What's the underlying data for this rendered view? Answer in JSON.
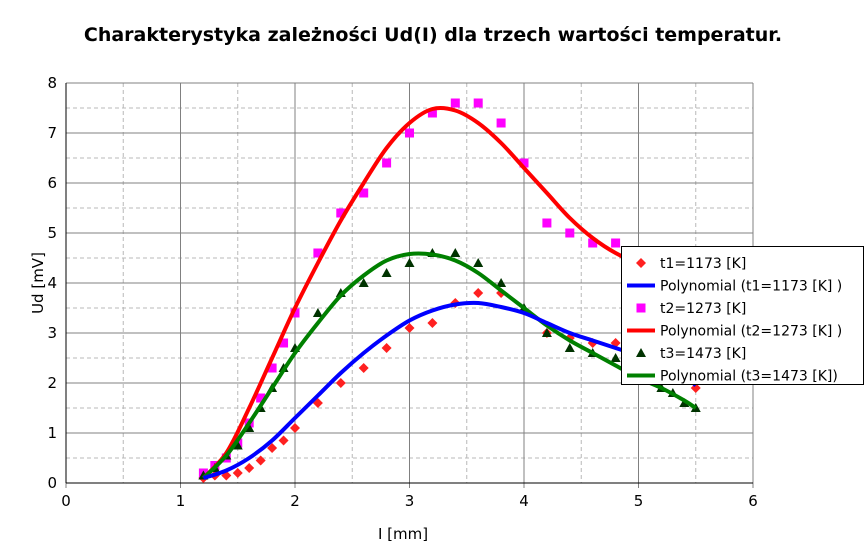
{
  "chart_data": {
    "type": "scatter",
    "title": "Charakterystyka zależności Ud(I) dla trzech wartości temperatur.",
    "xlabel": "I [mm]",
    "ylabel": "Ud [mV]",
    "xlim": [
      0,
      6
    ],
    "ylim": [
      0,
      8
    ],
    "xticks": [
      "0",
      "1",
      "2",
      "3",
      "4",
      "5",
      "6"
    ],
    "yticks": [
      "0",
      "1",
      "2",
      "3",
      "4",
      "5",
      "6",
      "7",
      "8"
    ],
    "grid": true,
    "legend_position": "right",
    "series": [
      {
        "name": "t1=1173 [K]",
        "kind": "points",
        "marker": "diamond",
        "color": "#ff2020",
        "x": [
          1.2,
          1.3,
          1.4,
          1.5,
          1.6,
          1.7,
          1.8,
          1.9,
          2.0,
          2.2,
          2.4,
          2.6,
          2.8,
          3.0,
          3.2,
          3.4,
          3.6,
          3.8,
          4.0,
          4.2,
          4.4,
          4.6,
          4.8,
          5.5
        ],
        "y": [
          0.1,
          0.15,
          0.15,
          0.2,
          0.3,
          0.45,
          0.7,
          0.85,
          1.1,
          1.6,
          2.0,
          2.3,
          2.7,
          3.1,
          3.2,
          3.6,
          3.8,
          3.8,
          3.45,
          3.0,
          2.9,
          2.8,
          2.8,
          1.9
        ]
      },
      {
        "name": "Polynomial (t1=1173 [K] )",
        "kind": "line",
        "color": "#0000ff",
        "x": [
          1.2,
          1.4,
          1.6,
          1.8,
          2.0,
          2.2,
          2.4,
          2.6,
          2.8,
          3.0,
          3.2,
          3.4,
          3.6,
          3.8,
          4.0,
          4.2,
          4.4,
          4.6,
          4.8,
          5.0,
          5.2,
          5.4,
          5.5
        ],
        "y": [
          0.1,
          0.25,
          0.5,
          0.85,
          1.3,
          1.75,
          2.2,
          2.6,
          2.95,
          3.25,
          3.45,
          3.57,
          3.6,
          3.52,
          3.4,
          3.2,
          3.0,
          2.85,
          2.7,
          2.55,
          2.4,
          2.15,
          1.95
        ]
      },
      {
        "name": "t2=1273 [K]",
        "kind": "points",
        "marker": "square",
        "color": "#ff00ff",
        "x": [
          1.2,
          1.3,
          1.4,
          1.5,
          1.6,
          1.7,
          1.8,
          1.9,
          2.0,
          2.2,
          2.4,
          2.6,
          2.8,
          3.0,
          3.2,
          3.4,
          3.6,
          3.8,
          4.0,
          4.2,
          4.4,
          4.6,
          4.8
        ],
        "y": [
          0.2,
          0.35,
          0.5,
          0.8,
          1.2,
          1.7,
          2.3,
          2.8,
          3.4,
          4.6,
          5.4,
          5.8,
          6.4,
          7.0,
          7.4,
          7.6,
          7.6,
          7.2,
          6.4,
          5.2,
          5.0,
          4.8,
          4.8
        ]
      },
      {
        "name": "Polynomial (t2=1273 [K] )",
        "kind": "line",
        "color": "#ff0000",
        "x": [
          1.2,
          1.4,
          1.6,
          1.8,
          2.0,
          2.2,
          2.4,
          2.6,
          2.8,
          3.0,
          3.2,
          3.4,
          3.6,
          3.8,
          4.0,
          4.2,
          4.4,
          4.6,
          4.8,
          5.0,
          5.5
        ],
        "y": [
          0.1,
          0.6,
          1.5,
          2.5,
          3.5,
          4.4,
          5.25,
          6.0,
          6.7,
          7.2,
          7.48,
          7.45,
          7.2,
          6.8,
          6.3,
          5.8,
          5.3,
          4.9,
          4.6,
          4.4,
          4.0
        ]
      },
      {
        "name": "t3=1473 [K]",
        "kind": "points",
        "marker": "triangle",
        "color": "#003300",
        "x": [
          1.2,
          1.3,
          1.4,
          1.5,
          1.6,
          1.7,
          1.8,
          1.9,
          2.0,
          2.2,
          2.4,
          2.6,
          2.8,
          3.0,
          3.2,
          3.4,
          3.6,
          3.8,
          4.0,
          4.2,
          4.4,
          4.6,
          4.8,
          5.2,
          5.3,
          5.4,
          5.5
        ],
        "y": [
          0.15,
          0.3,
          0.55,
          0.75,
          1.1,
          1.5,
          1.9,
          2.3,
          2.7,
          3.4,
          3.8,
          4.0,
          4.2,
          4.4,
          4.6,
          4.6,
          4.4,
          4.0,
          3.5,
          3.0,
          2.7,
          2.6,
          2.5,
          1.9,
          1.8,
          1.6,
          1.5
        ]
      },
      {
        "name": "Polynomial (t3=1473 [K])",
        "kind": "line",
        "color": "#008000",
        "x": [
          1.2,
          1.4,
          1.6,
          1.8,
          2.0,
          2.2,
          2.4,
          2.6,
          2.8,
          3.0,
          3.2,
          3.4,
          3.6,
          3.8,
          4.0,
          4.2,
          4.4,
          4.6,
          4.8,
          5.0,
          5.2,
          5.4,
          5.5
        ],
        "y": [
          0.1,
          0.55,
          1.2,
          1.9,
          2.6,
          3.2,
          3.75,
          4.15,
          4.45,
          4.58,
          4.57,
          4.45,
          4.2,
          3.85,
          3.5,
          3.15,
          2.85,
          2.6,
          2.35,
          2.1,
          1.9,
          1.65,
          1.5
        ]
      }
    ]
  }
}
